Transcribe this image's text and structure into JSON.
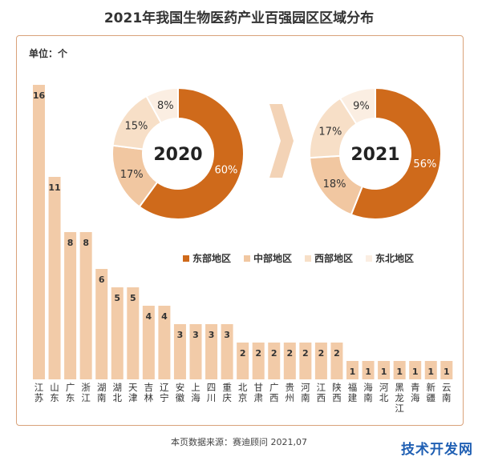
{
  "title": "2021年我国生物医药产业百强园区区域分布",
  "unit": "单位：个",
  "source": "本页数据来源：赛迪顾问 2021,07",
  "watermark": "技术开发网",
  "colors": {
    "bar": "#f2cba8",
    "bar_label": "#333333",
    "east": "#cf6a1b",
    "central": "#f1c7a1",
    "west": "#f7dfc7",
    "northeast": "#fbeee2",
    "arrow": "#f3d3b6",
    "border": "#d9a27a"
  },
  "legend": [
    {
      "label": "东部地区",
      "color_key": "east"
    },
    {
      "label": "中部地区",
      "color_key": "central"
    },
    {
      "label": "西部地区",
      "color_key": "west"
    },
    {
      "label": "东北地区",
      "color_key": "northeast"
    }
  ],
  "chart_data": [
    {
      "type": "bar",
      "categories": [
        "江苏",
        "山东",
        "广东",
        "浙江",
        "湖南",
        "湖北",
        "天津",
        "吉林",
        "辽宁",
        "安徽",
        "上海",
        "四川",
        "重庆",
        "北京",
        "甘肃",
        "广西",
        "贵州",
        "河南",
        "江西",
        "陕西",
        "福建",
        "海南",
        "河北",
        "黑龙江",
        "青海",
        "新疆",
        "云南"
      ],
      "values": [
        16,
        11,
        8,
        8,
        6,
        5,
        5,
        4,
        4,
        3,
        3,
        3,
        3,
        2,
        2,
        2,
        2,
        2,
        2,
        2,
        1,
        1,
        1,
        1,
        1,
        1,
        1
      ],
      "ylabel": "单位：个"
    },
    {
      "type": "pie",
      "center_label": "2020",
      "labels": [
        "东部地区",
        "中部地区",
        "西部地区",
        "东北地区"
      ],
      "values": [
        60,
        17,
        15,
        8
      ],
      "value_labels": [
        "60%",
        "17%",
        "15%",
        "8%"
      ]
    },
    {
      "type": "pie",
      "center_label": "2021",
      "labels": [
        "东部地区",
        "中部地区",
        "西部地区",
        "东北地区"
      ],
      "values": [
        56,
        18,
        17,
        9
      ],
      "value_labels": [
        "56%",
        "18%",
        "17%",
        "9%"
      ]
    }
  ]
}
